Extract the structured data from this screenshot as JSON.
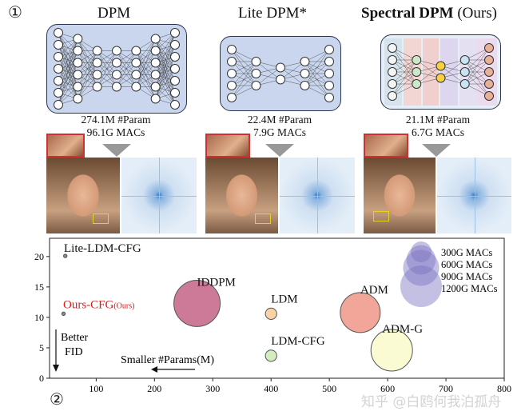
{
  "labels": {
    "circle_1": "①",
    "circle_2": "②"
  },
  "models": [
    {
      "title": "DPM",
      "title_suffix": "",
      "params": "274.1M #Param",
      "macs": "96.1G MACs"
    },
    {
      "title": "Lite DPM*",
      "title_suffix": "",
      "params": "22.4M #Param",
      "macs": "7.9G MACs"
    },
    {
      "title": "Spectral DPM",
      "title_suffix": " (Ours)",
      "params": "21.1M #Param",
      "macs": "6.7G MACs"
    }
  ],
  "chart_data": {
    "type": "scatter",
    "title": "",
    "xlabel": "",
    "ylabel": "",
    "xlim": [
      20,
      800
    ],
    "ylim": [
      0,
      23
    ],
    "xticks": [
      100,
      200,
      300,
      400,
      500,
      600,
      700,
      800
    ],
    "yticks": [
      0,
      5,
      10,
      15,
      20
    ],
    "grid": false,
    "points": [
      {
        "label": "Lite-LDM-CFG",
        "x": 47,
        "y": 20.1,
        "macs": 7,
        "color": "#888888"
      },
      {
        "label": "Ours-CFG",
        "label_sub": "(Ours)",
        "x": 44,
        "y": 10.6,
        "macs": 7,
        "color": "#888888",
        "label_color": "#d42020"
      },
      {
        "label": "IDDPM",
        "x": 273,
        "y": 12.3,
        "macs": 1490,
        "color": "#c0587e"
      },
      {
        "label": "LDM",
        "x": 400,
        "y": 10.6,
        "macs": 90,
        "color": "#f8c890"
      },
      {
        "label": "LDM-CFG",
        "x": 400,
        "y": 3.7,
        "macs": 90,
        "color": "#c8e8b0"
      },
      {
        "label": "ADM",
        "x": 553,
        "y": 10.8,
        "macs": 1110,
        "color": "#ee9080"
      },
      {
        "label": "ADM-G",
        "x": 607,
        "y": 4.6,
        "macs": 1200,
        "color": "#fafac8"
      }
    ],
    "size_legend": [
      {
        "label": "300G MACs",
        "macs": 300
      },
      {
        "label": "600G MACs",
        "macs": 600
      },
      {
        "label": "900G MACs",
        "macs": 900
      },
      {
        "label": "1200G MACs",
        "macs": 1200
      }
    ],
    "legend_color": "#7b74c0",
    "annotations": {
      "better_fid": [
        "Better",
        "FID"
      ],
      "smaller_params": "Smaller #Params(M)"
    }
  },
  "watermark": "知乎 @白鸥何我泊孤舟"
}
